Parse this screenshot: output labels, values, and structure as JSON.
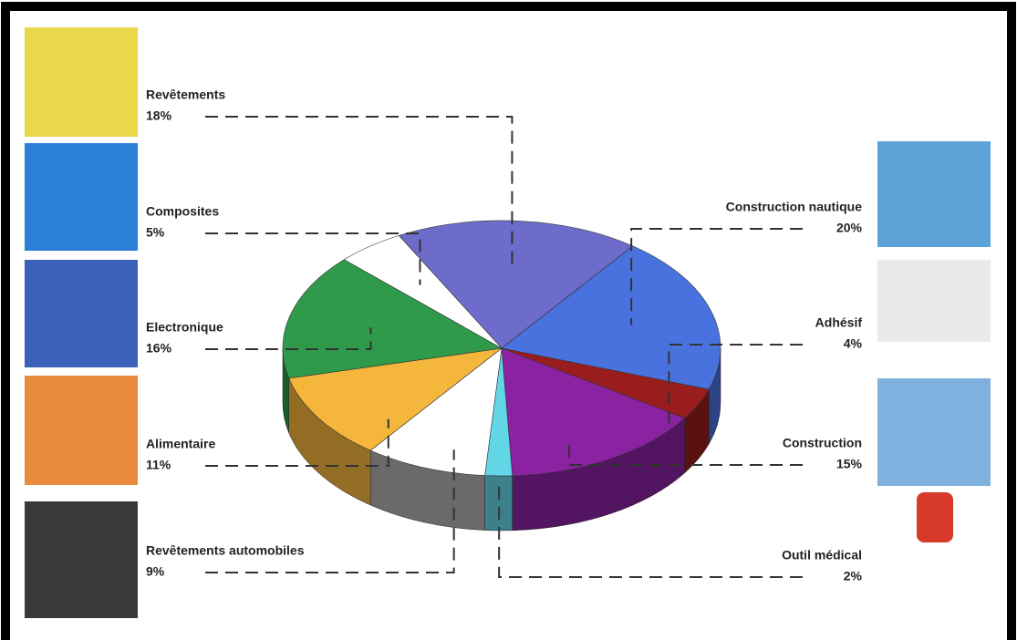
{
  "chart_data": {
    "type": "pie",
    "categories": [
      "Revêtements",
      "Construction nautique",
      "Adhésif",
      "Construction",
      "Outil médical",
      "Revêtements automobiles",
      "Alimentaire",
      "Electronique",
      "Composites"
    ],
    "values": [
      18,
      20,
      4,
      15,
      2,
      9,
      11,
      16,
      5
    ],
    "value_labels": [
      "18%",
      "20%",
      "4%",
      "15%",
      "2%",
      "9%",
      "11%",
      "16%",
      "5%"
    ],
    "colors": [
      "#6d6ccb",
      "#4a72df",
      "#9a1d1d",
      "#8a22a2",
      "#62d6e6",
      "#ffffff",
      "#f5b63c",
      "#2f9a49",
      "#ffffff"
    ]
  }
}
